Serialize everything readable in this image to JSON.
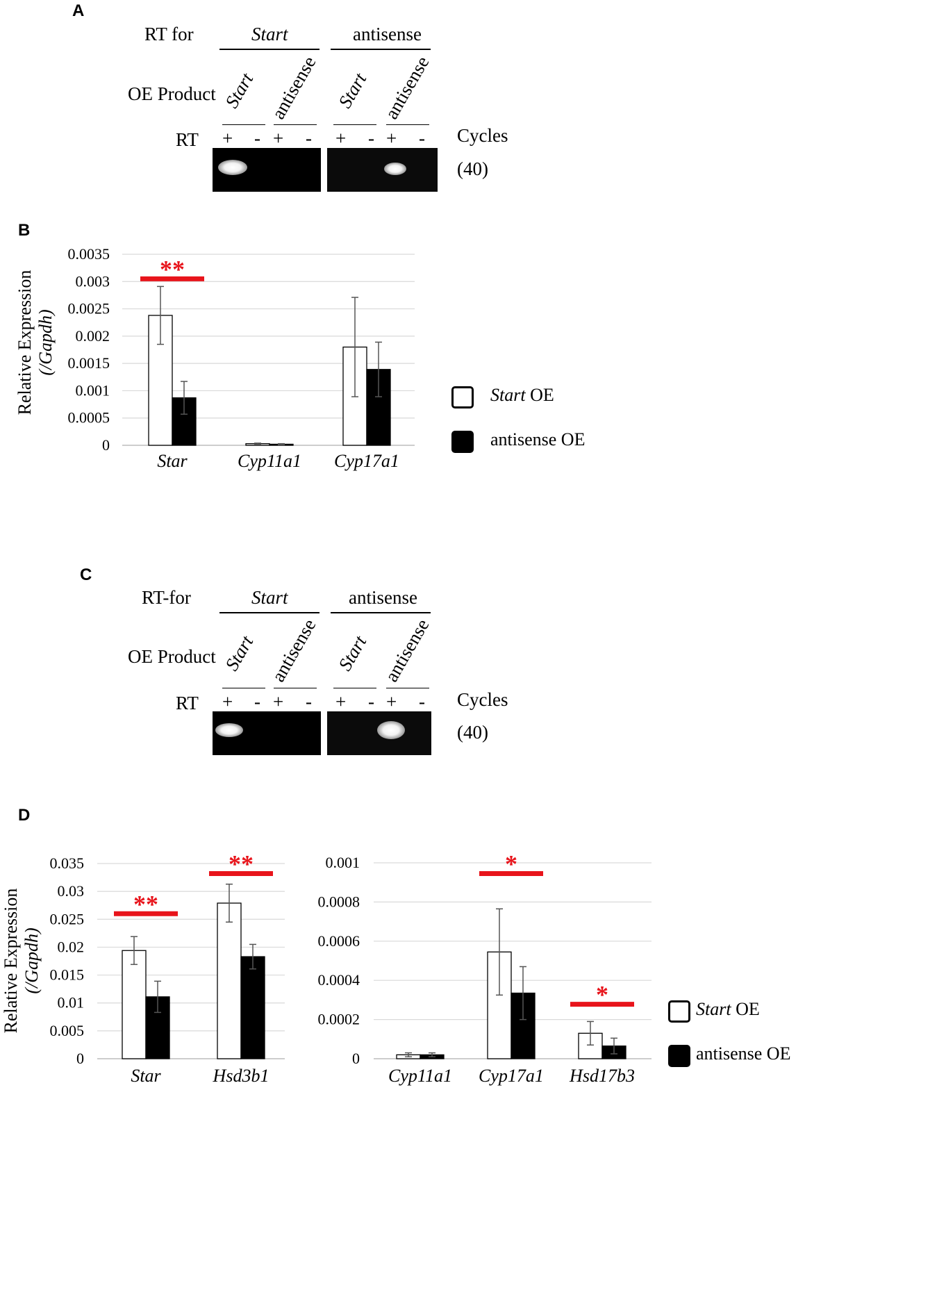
{
  "panels": {
    "A": {
      "letter": "A",
      "rt_label": "RT for",
      "rt_targets": [
        "Start",
        "antisense"
      ],
      "oe_label": "OE Product",
      "oe_products": [
        "Start",
        "antisense",
        "Start",
        "antisense"
      ],
      "rt_row_label": "RT",
      "rt_signs": [
        "+",
        "-",
        "+",
        "-",
        "+",
        "-",
        "+",
        "-"
      ],
      "cycles_label": "Cycles",
      "cycles_value": "(40)"
    },
    "B": {
      "letter": "B"
    },
    "C": {
      "letter": "C",
      "rt_label": "RT-for",
      "rt_targets": [
        "Start",
        "antisense"
      ],
      "oe_label": "OE Product",
      "oe_products": [
        "Start",
        "antisense",
        "Start",
        "antisense"
      ],
      "rt_row_label": "RT",
      "rt_signs": [
        "+",
        "-",
        "+",
        "-",
        "+",
        "-",
        "+",
        "-"
      ],
      "cycles_label": "Cycles",
      "cycles_value": "(40)"
    },
    "D": {
      "letter": "D"
    }
  },
  "legend": {
    "items": [
      {
        "italic": "Start",
        "rest": " OE",
        "fill": "#ffffff"
      },
      {
        "italic": "",
        "rest": "antisense OE",
        "fill": "#000000"
      }
    ]
  },
  "colors": {
    "white_bar": "#ffffff",
    "black_bar": "#000000",
    "significance": "#e8141b",
    "grid": "#d9d9d9"
  },
  "chart_data": [
    {
      "id": "B",
      "type": "bar",
      "ylabel_line1": "Relative Expression",
      "ylabel_line2": "(/Gapdh)",
      "ylim": [
        0,
        0.0035
      ],
      "yticks": [
        "0",
        "0.0005",
        "0.001",
        "0.0015",
        "0.002",
        "0.0025",
        "0.003",
        "0.0035"
      ],
      "grid": true,
      "categories": [
        "Star",
        "Cyp11a1",
        "Cyp17a1"
      ],
      "series": [
        {
          "name": "Start OE",
          "values": [
            0.00238,
            3e-05,
            0.0018
          ],
          "errors": [
            0.00053,
            1e-05,
            0.00091
          ]
        },
        {
          "name": "antisense OE",
          "values": [
            0.00087,
            2e-05,
            0.00139
          ],
          "errors": [
            0.0003,
            1e-05,
            0.0005
          ]
        }
      ],
      "significance": [
        {
          "category": 0,
          "label": "**",
          "level": 0.00305
        }
      ]
    },
    {
      "id": "D1",
      "type": "bar",
      "ylabel_line1": "Relative Expression",
      "ylabel_line2": "(/Gapdh)",
      "ylim": [
        0,
        0.035
      ],
      "yticks": [
        "0",
        "0.005",
        "0.01",
        "0.015",
        "0.02",
        "0.025",
        "0.03",
        "0.035"
      ],
      "grid": true,
      "categories": [
        "Star",
        "Hsd3b1"
      ],
      "series": [
        {
          "name": "Start OE",
          "values": [
            0.0194,
            0.0279
          ],
          "errors": [
            0.0025,
            0.0034
          ]
        },
        {
          "name": "antisense OE",
          "values": [
            0.0111,
            0.0183
          ],
          "errors": [
            0.0028,
            0.0022
          ]
        }
      ],
      "significance": [
        {
          "category": 0,
          "label": "**",
          "level": 0.026
        },
        {
          "category": 1,
          "label": "**",
          "level": 0.0332
        }
      ]
    },
    {
      "id": "D2",
      "type": "bar",
      "ylim": [
        0,
        0.001
      ],
      "yticks": [
        "0",
        "0.0002",
        "0.0004",
        "0.0006",
        "0.0008",
        "0.001"
      ],
      "grid": true,
      "categories": [
        "Cyp11a1",
        "Cyp17a1",
        "Hsd17b3"
      ],
      "series": [
        {
          "name": "Start OE",
          "values": [
            2e-05,
            0.000545,
            0.00013
          ],
          "errors": [
            1e-05,
            0.00022,
            6e-05
          ]
        },
        {
          "name": "antisense OE",
          "values": [
            2e-05,
            0.000335,
            6.5e-05
          ],
          "errors": [
            1e-05,
            0.000135,
            4e-05
          ]
        }
      ],
      "significance": [
        {
          "category": 1,
          "label": "*",
          "level": 0.000945
        },
        {
          "category": 2,
          "label": "*",
          "level": 0.000278
        }
      ]
    }
  ]
}
